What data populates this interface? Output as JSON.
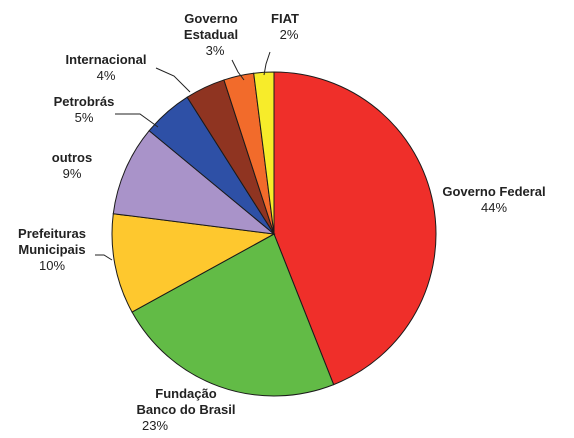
{
  "chart_data": {
    "type": "pie",
    "title": "",
    "slices": [
      {
        "name": "Governo Federal",
        "name_lines": [
          "Governo Federal"
        ],
        "value": 44,
        "label": "44%",
        "color": "#ef2f2a"
      },
      {
        "name": "Fundação Banco do Brasil",
        "name_lines": [
          "Fundação",
          "Banco do Brasil"
        ],
        "value": 23,
        "label": "23%",
        "color": "#62bb46"
      },
      {
        "name": "Prefeituras Municipais",
        "name_lines": [
          "Prefeituras",
          "Municipais"
        ],
        "value": 10,
        "label": "10%",
        "color": "#fec82e"
      },
      {
        "name": "outros",
        "name_lines": [
          "outros"
        ],
        "value": 9,
        "label": "9%",
        "color": "#a993c9"
      },
      {
        "name": "Petrobrás",
        "name_lines": [
          "Petrobrás"
        ],
        "value": 5,
        "label": "5%",
        "color": "#2e50a6"
      },
      {
        "name": "Internacional",
        "name_lines": [
          "Internacional"
        ],
        "value": 4,
        "label": "4%",
        "color": "#8f3421"
      },
      {
        "name": "Governo Estadual",
        "name_lines": [
          "Governo",
          "Estadual"
        ],
        "value": 3,
        "label": "3%",
        "color": "#f26b2b"
      },
      {
        "name": "FIAT",
        "name_lines": [
          "FIAT"
        ],
        "value": 2,
        "label": "2%",
        "color": "#f7ec2a"
      }
    ]
  }
}
